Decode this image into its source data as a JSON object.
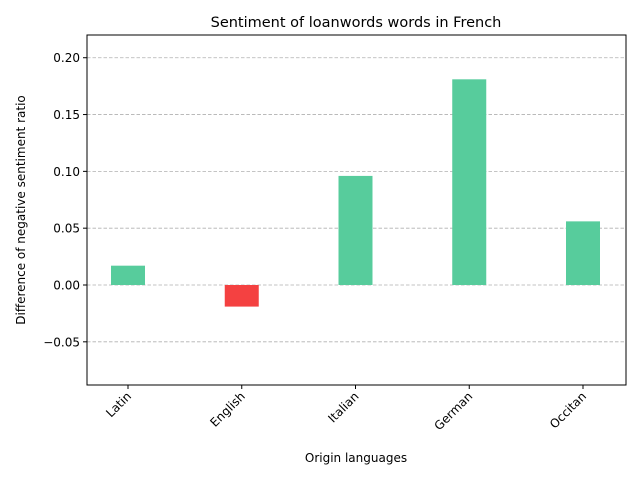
{
  "chart_data": {
    "type": "bar",
    "title": "Sentiment of loanwords words in French",
    "xlabel": "Origin languages",
    "ylabel": "Difference of negative sentiment ratio",
    "categories": [
      "Latin",
      "English",
      "Italian",
      "German",
      "Occitan"
    ],
    "values": [
      0.017,
      -0.019,
      0.096,
      0.181,
      0.056
    ],
    "ylim": [
      -0.088,
      0.22
    ],
    "yticks": [
      -0.05,
      0.0,
      0.05,
      0.1,
      0.15,
      0.2
    ],
    "ytick_labels": [
      "−0.05",
      "0.00",
      "0.05",
      "0.10",
      "0.15",
      "0.20"
    ],
    "grid": true,
    "grid_axis": "y",
    "colors": {
      "positive": "#57cc9c",
      "negative": "#f44141"
    }
  }
}
